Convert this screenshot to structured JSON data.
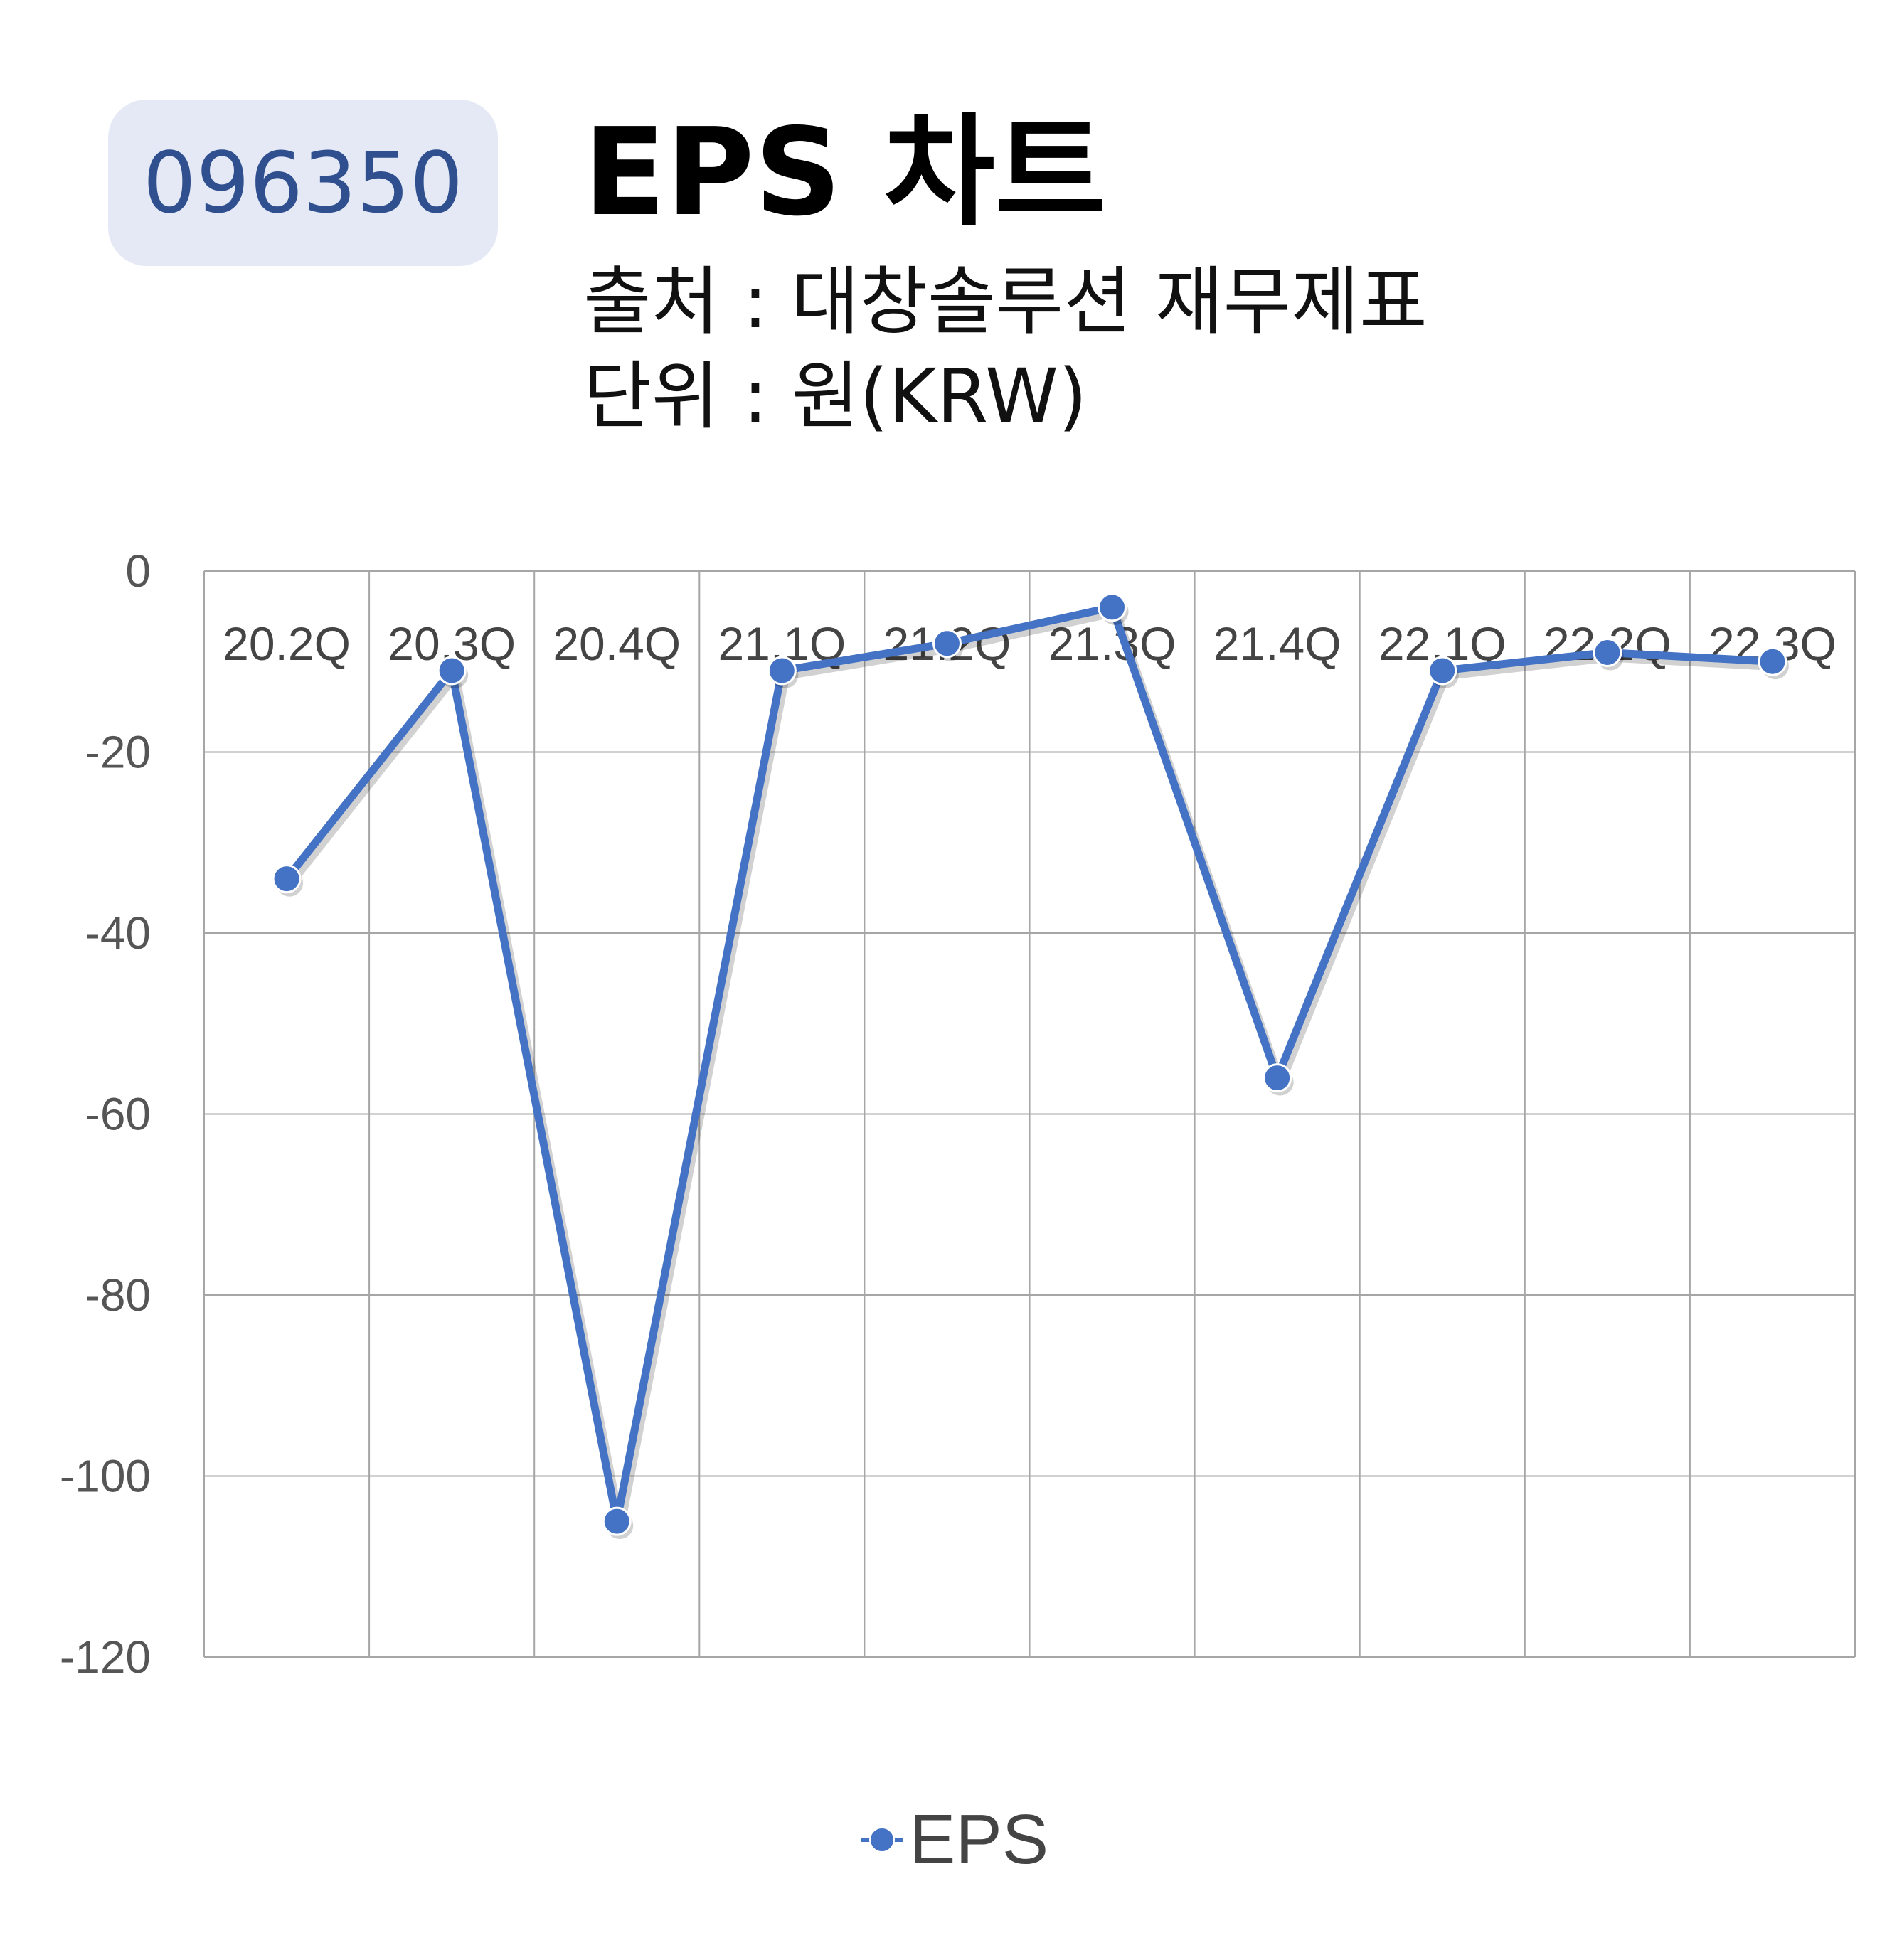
{
  "header": {
    "code": "096350",
    "title": "EPS 차트",
    "source": "출처 : 대창솔루션 재무제표",
    "unit": "단위 : 원(KRW)"
  },
  "legend": {
    "label": "EPS"
  },
  "colors": {
    "series": "#4472c4",
    "grid": "#a6a6a6",
    "badge_bg": "#e4e9f5",
    "badge_text": "#2f4f8f"
  },
  "chart_data": {
    "type": "line",
    "categories": [
      "20.2Q",
      "20.3Q",
      "20.4Q",
      "21.1Q",
      "21.2Q",
      "21.3Q",
      "21.4Q",
      "22.1Q",
      "22.2Q",
      "22.3Q"
    ],
    "series": [
      {
        "name": "EPS",
        "values": [
          -34,
          -11,
          -105,
          -11,
          -8,
          -4,
          -56,
          -11,
          -9,
          -10
        ]
      }
    ],
    "title": "EPS 차트",
    "xlabel": "",
    "ylabel": "",
    "ylim": [
      -120,
      0
    ],
    "yticks": [
      0,
      -20,
      -40,
      -60,
      -80,
      -100,
      -120
    ],
    "grid": true,
    "legend_position": "bottom"
  }
}
